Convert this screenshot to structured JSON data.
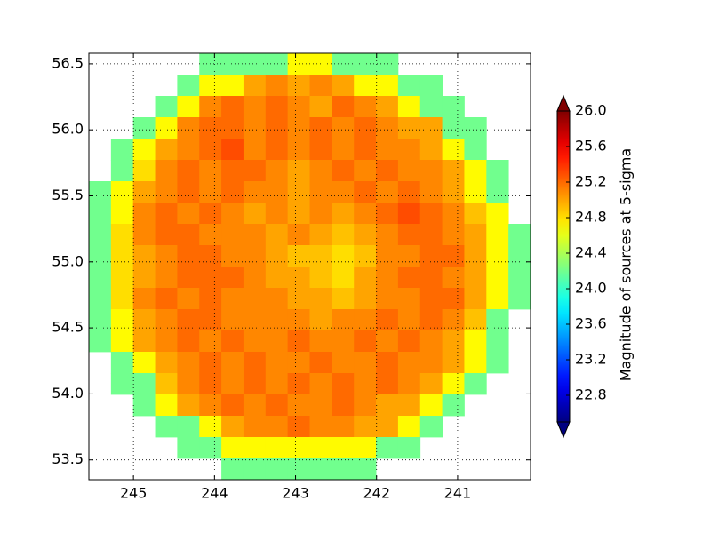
{
  "chart_data": {
    "type": "heatmap",
    "colormap": "jet",
    "grid": true,
    "xlim": [
      245.55,
      240.1
    ],
    "ylim": [
      53.35,
      56.58
    ],
    "xticks": [
      245,
      244,
      243,
      242,
      241
    ],
    "yticks": [
      53.5,
      {
        "value": 54,
        "label": "54.0"
      },
      54.5,
      {
        "value": 55,
        "label": "55.0"
      },
      55.5,
      {
        "value": 56,
        "label": "56.0"
      },
      56.5
    ],
    "xbins": [
      245.55,
      245.2775,
      245.005,
      244.7325,
      244.46,
      244.1875,
      243.915,
      243.6425,
      243.37,
      243.0975,
      242.825,
      242.5525,
      242.28,
      242.0075,
      241.735,
      241.4625,
      241.19,
      240.9175,
      240.645,
      240.3725,
      240.1
    ],
    "ybins": [
      56.58,
      56.4185,
      56.257,
      56.0955,
      55.934,
      55.7725,
      55.611,
      55.4495,
      55.288,
      55.1265,
      54.965,
      54.8035,
      54.642,
      54.4805,
      54.319,
      54.1575,
      53.996,
      53.8345,
      53.673,
      53.5115,
      53.35
    ],
    "values": [
      [
        null,
        null,
        null,
        null,
        null,
        24.2,
        24.2,
        24.2,
        24.2,
        24.7,
        24.7,
        24.2,
        24.2,
        24.2,
        null,
        null,
        null,
        null,
        null,
        null
      ],
      [
        null,
        null,
        null,
        null,
        24.2,
        24.7,
        24.7,
        25.0,
        25.1,
        25.0,
        25.1,
        25.0,
        24.7,
        24.7,
        24.2,
        24.2,
        null,
        null,
        null,
        null
      ],
      [
        null,
        null,
        null,
        24.2,
        24.7,
        25.1,
        25.2,
        25.1,
        25.2,
        25.1,
        25.0,
        25.2,
        25.1,
        25.0,
        24.7,
        24.2,
        24.2,
        null,
        null,
        null
      ],
      [
        null,
        null,
        24.2,
        24.7,
        25.1,
        25.2,
        25.2,
        25.1,
        25.2,
        25.1,
        25.2,
        25.1,
        25.2,
        25.1,
        25.0,
        25.0,
        24.2,
        24.2,
        null,
        null
      ],
      [
        null,
        24.2,
        24.7,
        25.0,
        25.1,
        25.2,
        25.3,
        25.1,
        25.2,
        25.1,
        25.2,
        25.1,
        25.2,
        25.1,
        25.1,
        25.0,
        24.7,
        24.2,
        null,
        null
      ],
      [
        null,
        24.2,
        24.8,
        25.1,
        25.2,
        25.1,
        25.2,
        25.2,
        25.1,
        25.0,
        25.1,
        25.2,
        25.1,
        25.2,
        25.1,
        25.1,
        25.0,
        24.7,
        24.2,
        null
      ],
      [
        24.2,
        24.7,
        25.0,
        25.1,
        25.2,
        25.1,
        25.2,
        25.1,
        25.1,
        25.0,
        25.1,
        25.1,
        25.2,
        25.1,
        25.2,
        25.1,
        25.0,
        24.7,
        24.2,
        null
      ],
      [
        24.2,
        24.7,
        25.1,
        25.2,
        25.1,
        25.2,
        25.1,
        25.0,
        25.1,
        25.0,
        25.1,
        25.0,
        25.1,
        25.2,
        25.3,
        25.2,
        25.1,
        24.9,
        24.7,
        null
      ],
      [
        24.2,
        24.8,
        25.1,
        25.2,
        25.2,
        25.1,
        25.1,
        25.1,
        25.0,
        25.1,
        25.0,
        24.9,
        25.0,
        25.1,
        25.2,
        25.2,
        25.1,
        25.0,
        24.7,
        24.2
      ],
      [
        24.2,
        24.8,
        25.0,
        25.1,
        25.2,
        25.2,
        25.1,
        25.1,
        25.0,
        24.9,
        24.9,
        24.8,
        24.9,
        25.1,
        25.1,
        25.2,
        25.2,
        25.0,
        24.7,
        24.2
      ],
      [
        24.2,
        24.8,
        25.0,
        25.1,
        25.2,
        25.2,
        25.2,
        25.1,
        25.0,
        25.0,
        24.9,
        24.8,
        25.0,
        25.1,
        25.2,
        25.2,
        25.1,
        25.0,
        24.7,
        24.2
      ],
      [
        24.2,
        24.8,
        25.1,
        25.2,
        25.1,
        25.2,
        25.1,
        25.1,
        25.1,
        25.0,
        25.0,
        24.9,
        25.0,
        25.1,
        25.1,
        25.2,
        25.2,
        25.0,
        24.7,
        24.2
      ],
      [
        24.2,
        24.7,
        25.0,
        25.1,
        25.2,
        25.2,
        25.1,
        25.1,
        25.1,
        25.1,
        25.0,
        25.1,
        25.1,
        25.2,
        25.1,
        25.2,
        25.1,
        24.9,
        24.2,
        null
      ],
      [
        24.2,
        24.7,
        25.0,
        25.1,
        25.2,
        25.1,
        25.2,
        25.1,
        25.1,
        25.2,
        25.1,
        25.1,
        25.2,
        25.1,
        25.2,
        25.1,
        25.0,
        24.7,
        24.2,
        null
      ],
      [
        null,
        24.2,
        24.7,
        25.0,
        25.1,
        25.2,
        25.1,
        25.2,
        25.1,
        25.1,
        25.2,
        25.1,
        25.1,
        25.2,
        25.1,
        25.1,
        25.0,
        24.7,
        24.2,
        null
      ],
      [
        null,
        24.2,
        24.2,
        24.9,
        25.1,
        25.2,
        25.1,
        25.2,
        25.1,
        25.2,
        25.1,
        25.2,
        25.1,
        25.2,
        25.1,
        25.0,
        24.7,
        24.2,
        null,
        null
      ],
      [
        null,
        null,
        24.2,
        24.7,
        25.0,
        25.1,
        25.2,
        25.1,
        25.2,
        25.1,
        25.1,
        25.2,
        25.1,
        25.0,
        25.0,
        24.7,
        24.2,
        null,
        null,
        null
      ],
      [
        null,
        null,
        null,
        24.2,
        24.2,
        24.7,
        25.0,
        25.1,
        25.1,
        25.2,
        25.1,
        25.1,
        25.0,
        25.0,
        24.7,
        24.2,
        null,
        null,
        null,
        null
      ],
      [
        null,
        null,
        null,
        null,
        24.2,
        24.2,
        24.7,
        24.7,
        24.7,
        24.7,
        24.7,
        24.7,
        24.7,
        24.2,
        24.2,
        null,
        null,
        null,
        null,
        null
      ],
      [
        null,
        null,
        null,
        null,
        null,
        null,
        24.2,
        24.2,
        24.2,
        24.2,
        24.2,
        24.2,
        24.2,
        null,
        null,
        null,
        null,
        null,
        null,
        null
      ]
    ],
    "clim": [
      22.5,
      26.0
    ],
    "cbar_extend": "both",
    "cbar_ticks": [
      22.8,
      23.2,
      23.6,
      {
        "value": 24,
        "label": "24.0"
      },
      24.4,
      24.8,
      25.2,
      25.6,
      {
        "value": 26,
        "label": "26.0"
      }
    ],
    "cbar_label": "Magnitude of sources at 5-sigma"
  }
}
